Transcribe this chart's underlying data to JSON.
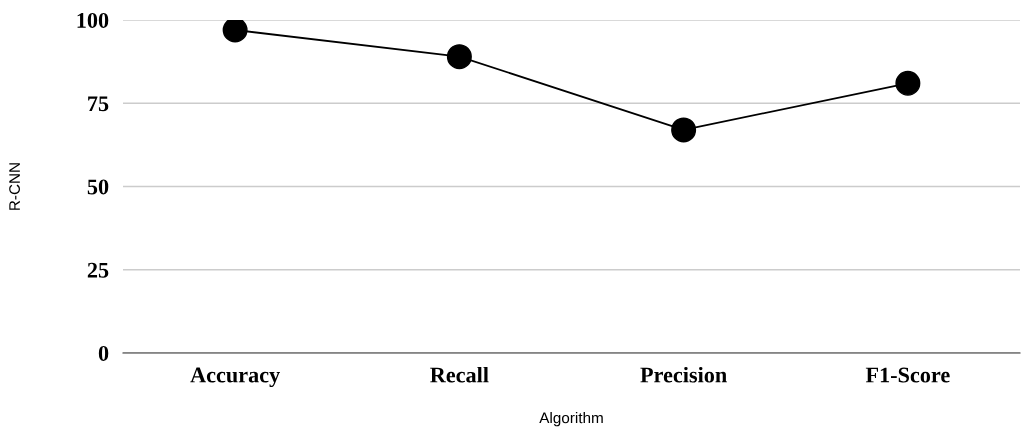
{
  "chart_data": {
    "type": "line",
    "xlabel": "Algorithm",
    "ylabel": "R-CNN",
    "categories": [
      "Accuracy",
      "Recall",
      "Precision",
      "F1-Score"
    ],
    "series": [
      {
        "color": "#000000",
        "values": [
          97,
          89,
          67,
          81
        ]
      }
    ],
    "ylim": [
      0,
      100
    ],
    "yticks": [
      0,
      25,
      50,
      75,
      100
    ],
    "grid": "y",
    "marker": "circle",
    "line_style": "solid"
  }
}
